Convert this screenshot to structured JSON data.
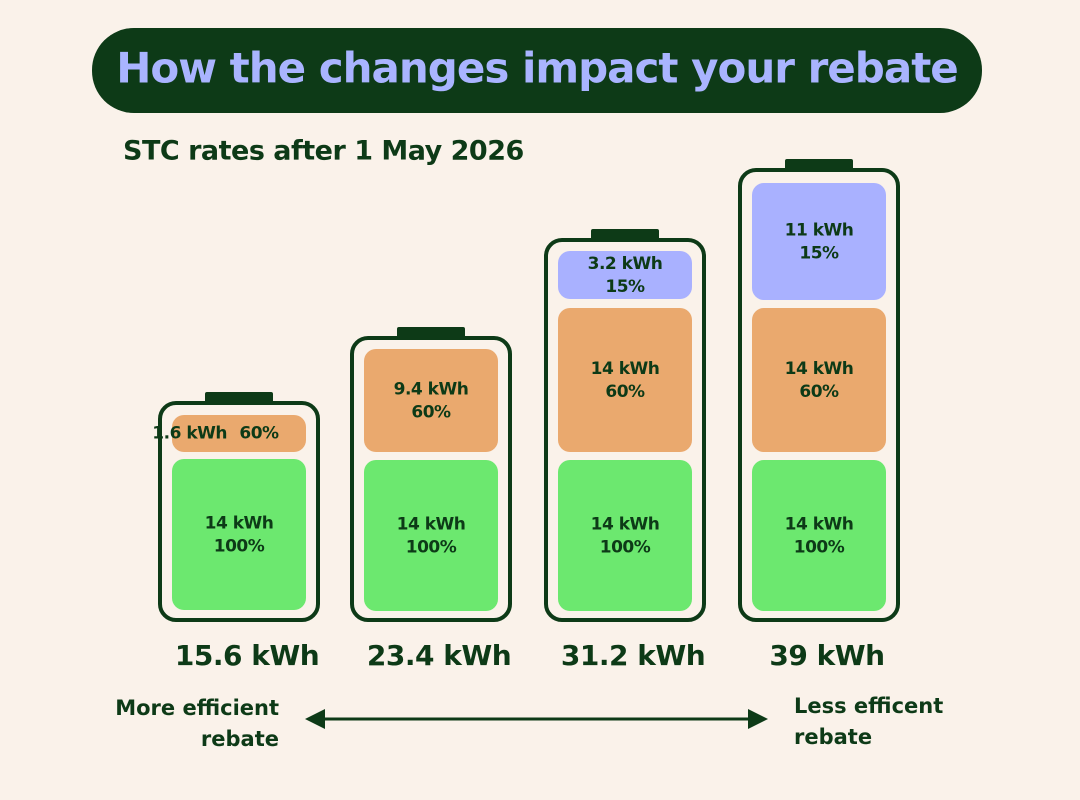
{
  "header": {
    "title": "How the changes impact your rebate",
    "subtitle": "STC rates after 1 May 2026"
  },
  "batteries": [
    {
      "total": "15.6 kWh",
      "segments": [
        {
          "energy": "1.6 kWh",
          "rate": "60%"
        },
        {
          "energy": "14 kWh",
          "rate": "100%"
        }
      ]
    },
    {
      "total": "23.4 kWh",
      "segments": [
        {
          "energy": "9.4 kWh",
          "rate": "60%"
        },
        {
          "energy": "14 kWh",
          "rate": "100%"
        }
      ]
    },
    {
      "total": "31.2 kWh",
      "segments": [
        {
          "energy": "3.2 kWh",
          "rate": "15%"
        },
        {
          "energy": "14 kWh",
          "rate": "60%"
        },
        {
          "energy": "14 kWh",
          "rate": "100%"
        }
      ]
    },
    {
      "total": "39 kWh",
      "segments": [
        {
          "energy": "11 kWh",
          "rate": "15%"
        },
        {
          "energy": "14 kWh",
          "rate": "60%"
        },
        {
          "energy": "14 kWh",
          "rate": "100%"
        }
      ]
    }
  ],
  "scale": {
    "left": [
      "More efficient",
      "rebate"
    ],
    "right": [
      "Less efficent",
      "rebate"
    ]
  }
}
